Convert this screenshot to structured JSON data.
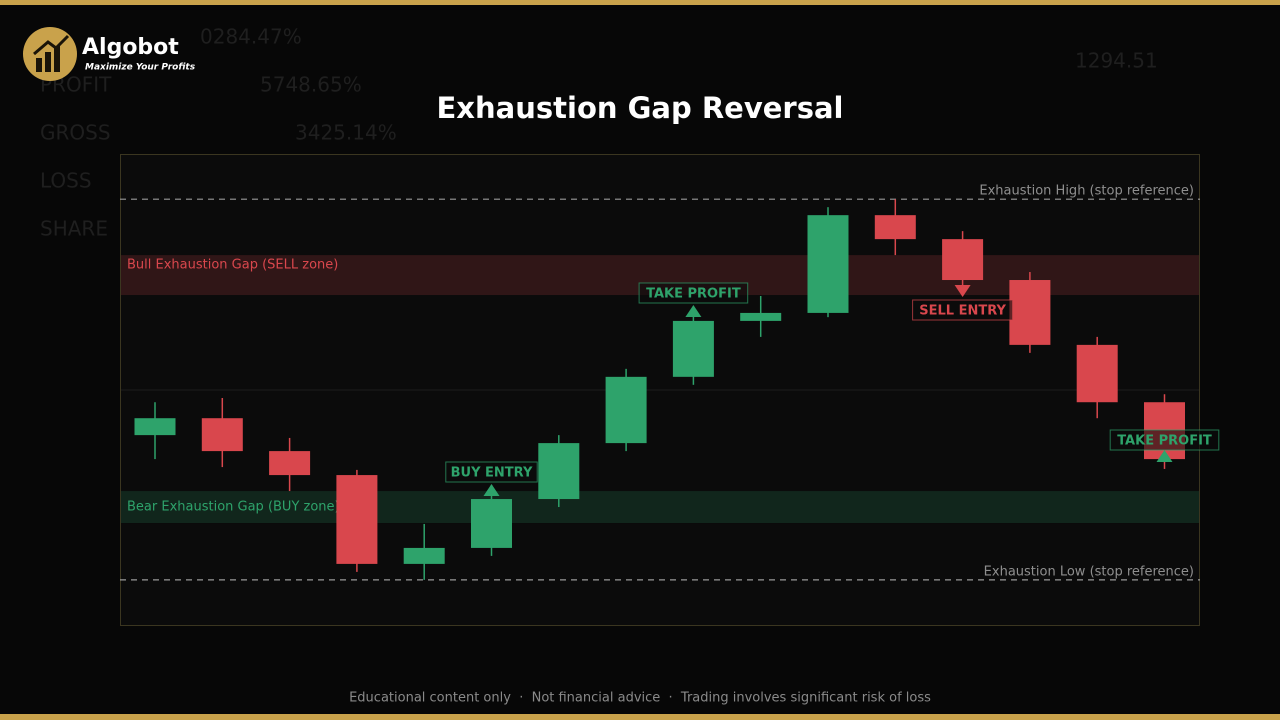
{
  "brand": {
    "name": "Algobot",
    "tagline": "Maximize Your Profits"
  },
  "background_text": [
    "0284.47%",
    "PROFIT",
    "5748.65%",
    "GROSS",
    "3425.14%",
    "LOSS",
    "SHARE",
    "1294.51"
  ],
  "chart_data": {
    "type": "candlestick",
    "title": "Exhaustion Gap Reversal",
    "categories": [
      null,
      null,
      null,
      null,
      null,
      null,
      null,
      null,
      null,
      null,
      null,
      null,
      null,
      null,
      null,
      null
    ],
    "open": [
      40.4,
      44.0,
      37.0,
      31.9,
      13.0,
      16.4,
      26.8,
      38.7,
      52.8,
      64.7,
      66.4,
      87.2,
      82.1,
      73.4,
      59.6,
      47.4
    ],
    "high": [
      47.4,
      48.3,
      39.8,
      33.0,
      21.5,
      29.8,
      40.4,
      54.5,
      66.8,
      70.0,
      88.9,
      90.6,
      83.8,
      75.1,
      61.3,
      49.1
    ],
    "low": [
      35.3,
      33.6,
      28.5,
      11.3,
      9.6,
      14.7,
      25.1,
      37.0,
      51.1,
      61.3,
      65.5,
      78.7,
      71.7,
      57.9,
      44.0,
      33.2
    ],
    "close": [
      44.0,
      37.0,
      31.9,
      13.0,
      16.4,
      26.8,
      38.7,
      52.8,
      64.7,
      66.4,
      87.2,
      82.1,
      73.4,
      59.6,
      47.4,
      35.3
    ],
    "up_color": "#2ea36b",
    "down_color": "#d9474d",
    "ylim": [
      0,
      100
    ],
    "levels": [
      {
        "label": "Exhaustion High (stop reference)",
        "value": 90.6
      },
      {
        "label": "Exhaustion Low (stop reference)",
        "value": 9.6
      }
    ],
    "zones": [
      {
        "label": "Bull Exhaustion Gap (SELL zone)",
        "range": [
          70.2,
          78.7
        ],
        "color": "#d9474d"
      },
      {
        "label": "Bear Exhaustion Gap (BUY zone)",
        "range": [
          21.7,
          28.5
        ],
        "color": "#2ea36b"
      }
    ],
    "annotations": [
      {
        "text": "BUY ENTRY",
        "color": "#2ea36b"
      },
      {
        "text": "TAKE PROFIT",
        "color": "#2ea36b"
      },
      {
        "text": "SELL ENTRY",
        "color": "#d9474d"
      },
      {
        "text": "TAKE PROFIT",
        "color": "#2ea36b"
      }
    ]
  },
  "footer": "Educational content only  ·  Not financial advice  ·  Trading involves significant risk of loss"
}
